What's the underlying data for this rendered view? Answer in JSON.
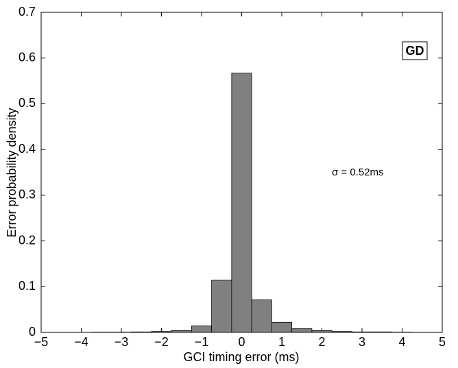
{
  "chart_data": {
    "type": "histogram",
    "xlabel": "GCI timing error (ms)",
    "ylabel": "Error probability density",
    "annotations": [
      "GD",
      "σ = 0.52ms"
    ],
    "bins": [
      -3.75,
      -3.25,
      -2.75,
      -2.25,
      -1.75,
      -1.25,
      -0.75,
      -0.25,
      0.25,
      0.75,
      1.25,
      1.75,
      2.25,
      2.75,
      3.25,
      3.75,
      4.25
    ],
    "counts": [
      0.0005,
      0.0005,
      0.001,
      0.002,
      0.004,
      0.014,
      0.114,
      0.567,
      0.071,
      0.022,
      0.008,
      0.004,
      0.002,
      0.001,
      0.001,
      0.0005
    ],
    "color": "#808080",
    "xlim": [
      -5,
      5
    ],
    "xticks": [
      {
        "value": -5,
        "label": "−5"
      },
      {
        "value": -4,
        "label": "−4"
      },
      {
        "value": -3,
        "label": "−3"
      },
      {
        "value": -2,
        "label": "−2"
      },
      {
        "value": -1,
        "label": "−1"
      },
      0,
      1,
      2,
      3,
      4,
      5
    ],
    "ylim": [
      0,
      0.7
    ],
    "yticks": [
      0,
      0.1,
      0.2,
      0.3,
      0.4,
      0.5,
      0.6,
      0.7
    ]
  }
}
